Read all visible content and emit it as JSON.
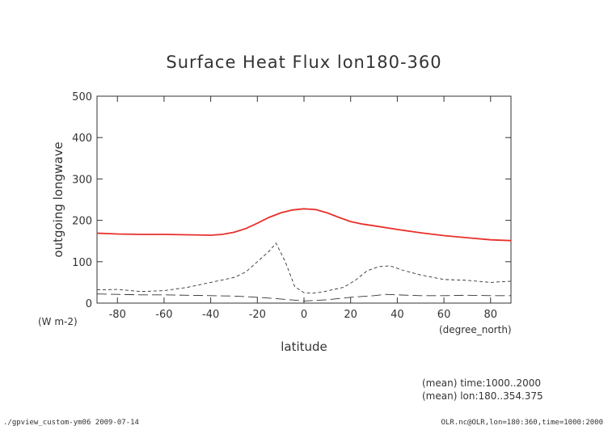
{
  "chart_data": {
    "type": "line",
    "title": "Surface Heat Flux lon180-360",
    "xlabel": "latitude",
    "ylabel": "outgoing longwave",
    "y_units": "(W m-2)",
    "x_units": "(degree_north)",
    "xlim": [
      -88.75,
      88.75
    ],
    "ylim": [
      0,
      500
    ],
    "x_ticks": [
      -80,
      -60,
      -40,
      -20,
      0,
      20,
      40,
      60,
      80
    ],
    "y_ticks": [
      0,
      100,
      200,
      300,
      400,
      500
    ],
    "grid": false,
    "series": [
      {
        "style": "solid",
        "color": "#e8302a",
        "x": [
          -88.75,
          -80,
          -70,
          -60,
          -50,
          -40,
          -35,
          -30,
          -25,
          -20,
          -15,
          -10,
          -5,
          0,
          5,
          10,
          15,
          20,
          25,
          30,
          40,
          50,
          60,
          70,
          80,
          88.75
        ],
        "values": [
          169,
          167,
          166,
          166,
          165,
          164,
          166,
          171,
          180,
          193,
          207,
          218,
          225,
          228,
          226,
          218,
          207,
          197,
          191,
          187,
          178,
          170,
          163,
          158,
          153,
          151
        ]
      },
      {
        "style": "dashed",
        "color": "#333333",
        "x": [
          -88.75,
          -80,
          -70,
          -60,
          -50,
          -40,
          -30,
          -25,
          -20,
          -15,
          -12,
          -8,
          -4,
          0,
          4,
          8,
          12,
          17,
          22,
          27,
          32,
          37,
          42,
          50,
          60,
          70,
          80,
          88.75
        ],
        "values": [
          32,
          33,
          28,
          30,
          38,
          50,
          62,
          75,
          100,
          125,
          145,
          100,
          40,
          25,
          24,
          27,
          32,
          38,
          55,
          78,
          88,
          90,
          80,
          68,
          57,
          55,
          50,
          53
        ]
      },
      {
        "style": "longdash",
        "color": "#333333",
        "x": [
          -88.75,
          -80,
          -70,
          -60,
          -50,
          -40,
          -30,
          -20,
          -10,
          0,
          10,
          20,
          30,
          35,
          40,
          50,
          60,
          70,
          80,
          88.75
        ],
        "values": [
          22,
          21,
          20,
          20,
          19,
          18,
          17,
          14,
          10,
          5,
          8,
          14,
          18,
          21,
          20,
          18,
          18,
          19,
          18,
          18
        ]
      }
    ]
  },
  "annotations": {
    "mean_time": "(mean) time:1000..2000",
    "mean_lon": "(mean) lon:180..354.375"
  },
  "footer": {
    "left": "./gpview_custom-ym06  2009-07-14",
    "right": "OLR.nc@OLR,lon=180:360,time=1000:2000"
  }
}
